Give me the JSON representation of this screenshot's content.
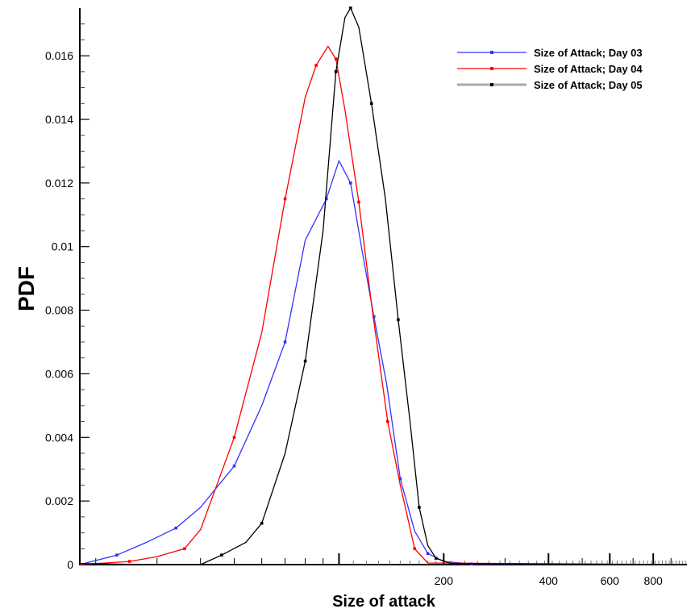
{
  "chart_data": {
    "type": "line",
    "title": "",
    "xlabel": "Size of attack",
    "ylabel": "PDF",
    "x_scale": "log",
    "xlim": [
      18,
      1000
    ],
    "ylim": [
      0,
      0.0175
    ],
    "x_ticks": [
      {
        "label": "200",
        "value": 200
      },
      {
        "label": "400",
        "value": 400
      },
      {
        "label": "600",
        "value": 600
      },
      {
        "label": "800",
        "value": 800
      }
    ],
    "y_ticks": [
      {
        "label": "0",
        "value": 0
      },
      {
        "label": "0.002",
        "value": 0.002
      },
      {
        "label": "0.004",
        "value": 0.004
      },
      {
        "label": "0.006",
        "value": 0.006
      },
      {
        "label": "0.008",
        "value": 0.008
      },
      {
        "label": "0.01",
        "value": 0.01
      },
      {
        "label": "0.012",
        "value": 0.012
      },
      {
        "label": "0.014",
        "value": 0.014
      },
      {
        "label": "0.016",
        "value": 0.016
      }
    ],
    "grid": false,
    "legend_position": "top-right",
    "series": [
      {
        "name": "Size of Attack; Day 03",
        "color": "#3333ff",
        "points": [
          [
            18,
            0.0
          ],
          [
            23,
            0.0003
          ],
          [
            28,
            0.0007
          ],
          [
            34,
            0.00115
          ],
          [
            40,
            0.0018
          ],
          [
            50,
            0.0031
          ],
          [
            60,
            0.005
          ],
          [
            70,
            0.007
          ],
          [
            80,
            0.0102
          ],
          [
            92,
            0.0115
          ],
          [
            100,
            0.0127
          ],
          [
            108,
            0.012
          ],
          [
            116,
            0.01
          ],
          [
            126,
            0.0078
          ],
          [
            137,
            0.0057
          ],
          [
            150,
            0.0027
          ],
          [
            165,
            0.00105
          ],
          [
            180,
            0.00035
          ],
          [
            200,
            0.0001
          ],
          [
            240,
            2e-05
          ],
          [
            1000,
            0.0
          ]
        ]
      },
      {
        "name": "Size of Attack; Day 04",
        "color": "#ff0000",
        "points": [
          [
            18,
            0.0
          ],
          [
            25,
            0.0001
          ],
          [
            30,
            0.00025
          ],
          [
            36,
            0.0005
          ],
          [
            40,
            0.0011
          ],
          [
            50,
            0.004
          ],
          [
            60,
            0.0073
          ],
          [
            70,
            0.0115
          ],
          [
            80,
            0.0147
          ],
          [
            86,
            0.0157
          ],
          [
            93,
            0.0163
          ],
          [
            98,
            0.0159
          ],
          [
            104,
            0.0143
          ],
          [
            114,
            0.0114
          ],
          [
            124,
            0.0082
          ],
          [
            138,
            0.0045
          ],
          [
            150,
            0.0025
          ],
          [
            165,
            0.0005
          ],
          [
            180,
            5e-05
          ],
          [
            1000,
            0.0
          ]
        ]
      },
      {
        "name": "Size of Attack; Day 05",
        "color": "#000000",
        "points": [
          [
            18,
            3e-05
          ],
          [
            30,
            0.0
          ],
          [
            40,
            0.0
          ],
          [
            46,
            0.0003
          ],
          [
            54,
            0.0007
          ],
          [
            60,
            0.0013
          ],
          [
            70,
            0.0035
          ],
          [
            80,
            0.0064
          ],
          [
            90,
            0.0105
          ],
          [
            98,
            0.0155
          ],
          [
            104,
            0.0172
          ],
          [
            108,
            0.0175
          ],
          [
            114,
            0.0169
          ],
          [
            124,
            0.0145
          ],
          [
            136,
            0.0115
          ],
          [
            148,
            0.0077
          ],
          [
            160,
            0.0045
          ],
          [
            170,
            0.0018
          ],
          [
            180,
            0.0006
          ],
          [
            190,
            0.0002
          ],
          [
            210,
            3e-05
          ],
          [
            1000,
            0.0
          ]
        ]
      }
    ]
  }
}
